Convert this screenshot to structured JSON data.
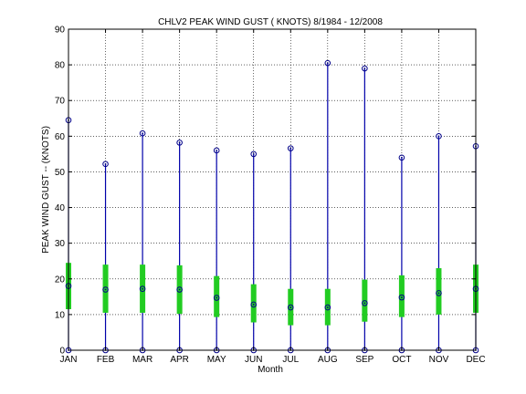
{
  "chart_data": {
    "type": "box",
    "title": "CHLV2  PEAK WIND GUST ( KNOTS) 8/1984 - 12/2008",
    "xlabel": "Month",
    "ylabel": "PEAK WIND GUST  --  (KNOTS)",
    "ylim": [
      0,
      90
    ],
    "yticks": [
      0,
      10,
      20,
      30,
      40,
      50,
      60,
      70,
      80,
      90
    ],
    "grid": true,
    "categories": [
      "JAN",
      "FEB",
      "MAR",
      "APR",
      "MAY",
      "JUN",
      "JUL",
      "AUG",
      "SEP",
      "OCT",
      "NOV",
      "DEC"
    ],
    "min": [
      0,
      0,
      0,
      0,
      0,
      0,
      0,
      0,
      0,
      0,
      0,
      0
    ],
    "max": [
      64.5,
      52.2,
      60.8,
      58.2,
      56,
      55,
      56.6,
      80.5,
      79,
      54,
      60,
      57.2
    ],
    "q1": [
      11.5,
      10.5,
      10.5,
      10.2,
      9.3,
      7.8,
      7,
      7,
      8,
      9.3,
      10,
      10.5
    ],
    "q3": [
      24.5,
      24,
      24,
      23.8,
      20.8,
      18.5,
      17.2,
      17.2,
      19.8,
      21,
      23,
      24
    ],
    "median": [
      18,
      17,
      17.2,
      17,
      14.7,
      12.8,
      12,
      12,
      13.2,
      14.8,
      16,
      17.2
    ],
    "colors": {
      "whisker": "#0000aa",
      "box": "#22cc22",
      "marker": "#000088"
    }
  }
}
